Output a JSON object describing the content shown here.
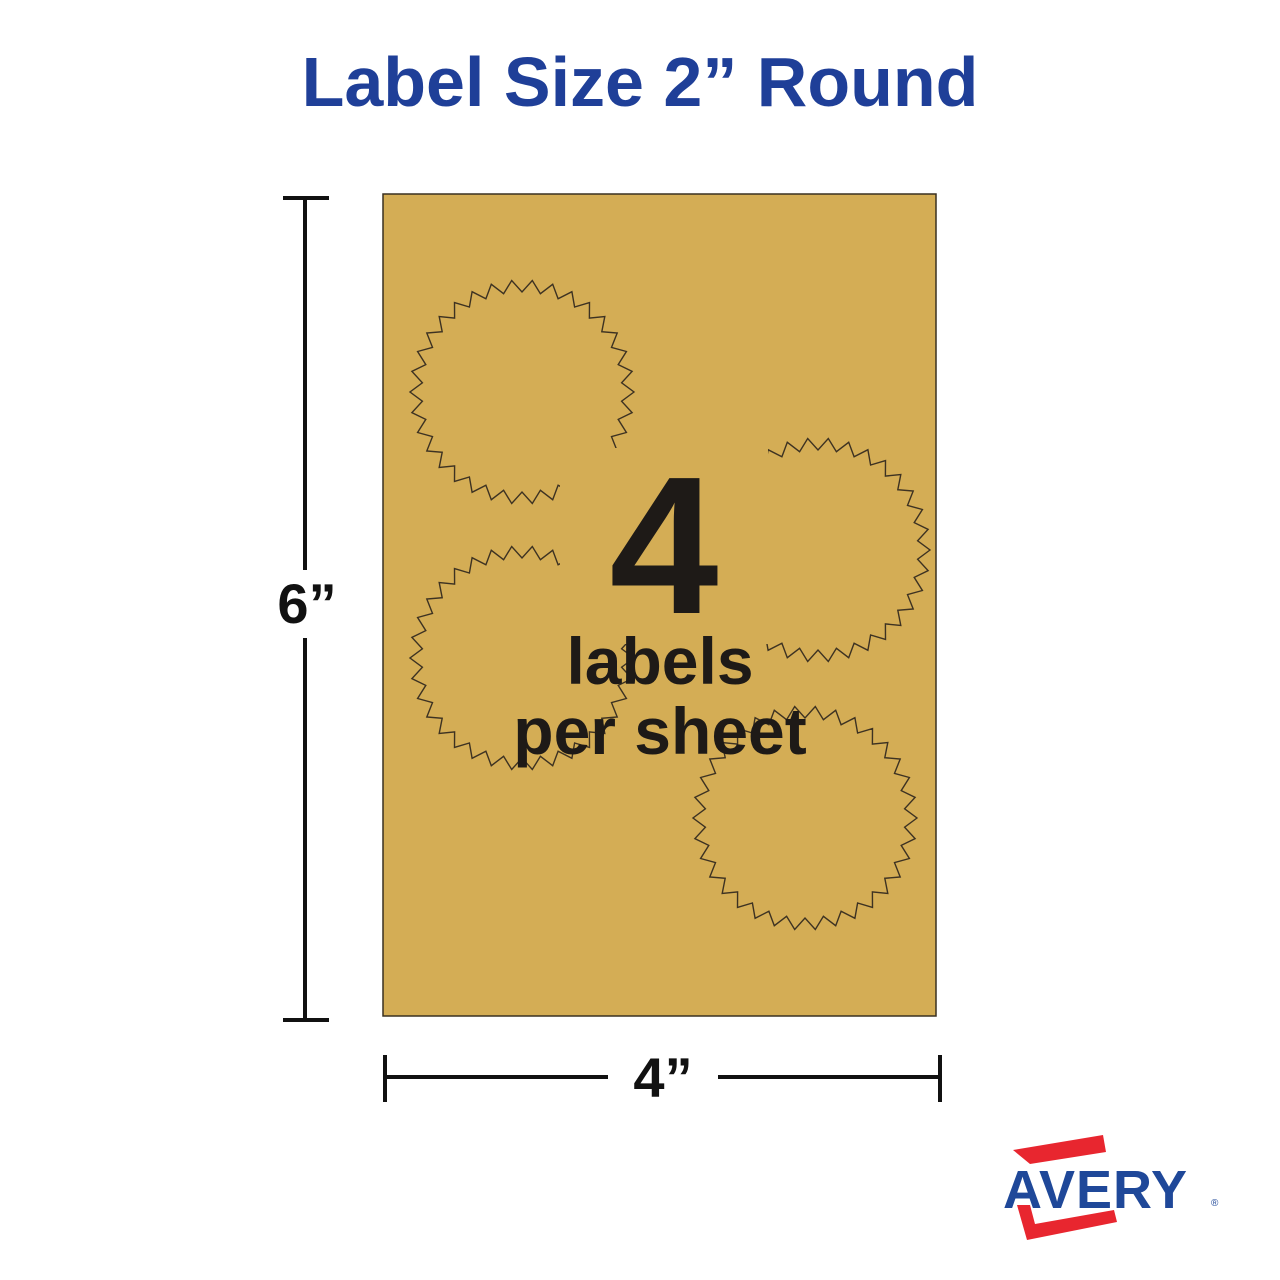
{
  "title": "Label Size 2” Round",
  "dimensions": {
    "height_label": "6”",
    "width_label": "4”"
  },
  "sheet": {
    "count": "4",
    "line1": "labels",
    "line2": "per sheet",
    "color": "#D4AD55",
    "label_shape": "starburst-seal"
  },
  "logo": {
    "text": "AVERY",
    "registered": "®",
    "text_color": "#1f4899",
    "frame_color": "#e8262f"
  }
}
